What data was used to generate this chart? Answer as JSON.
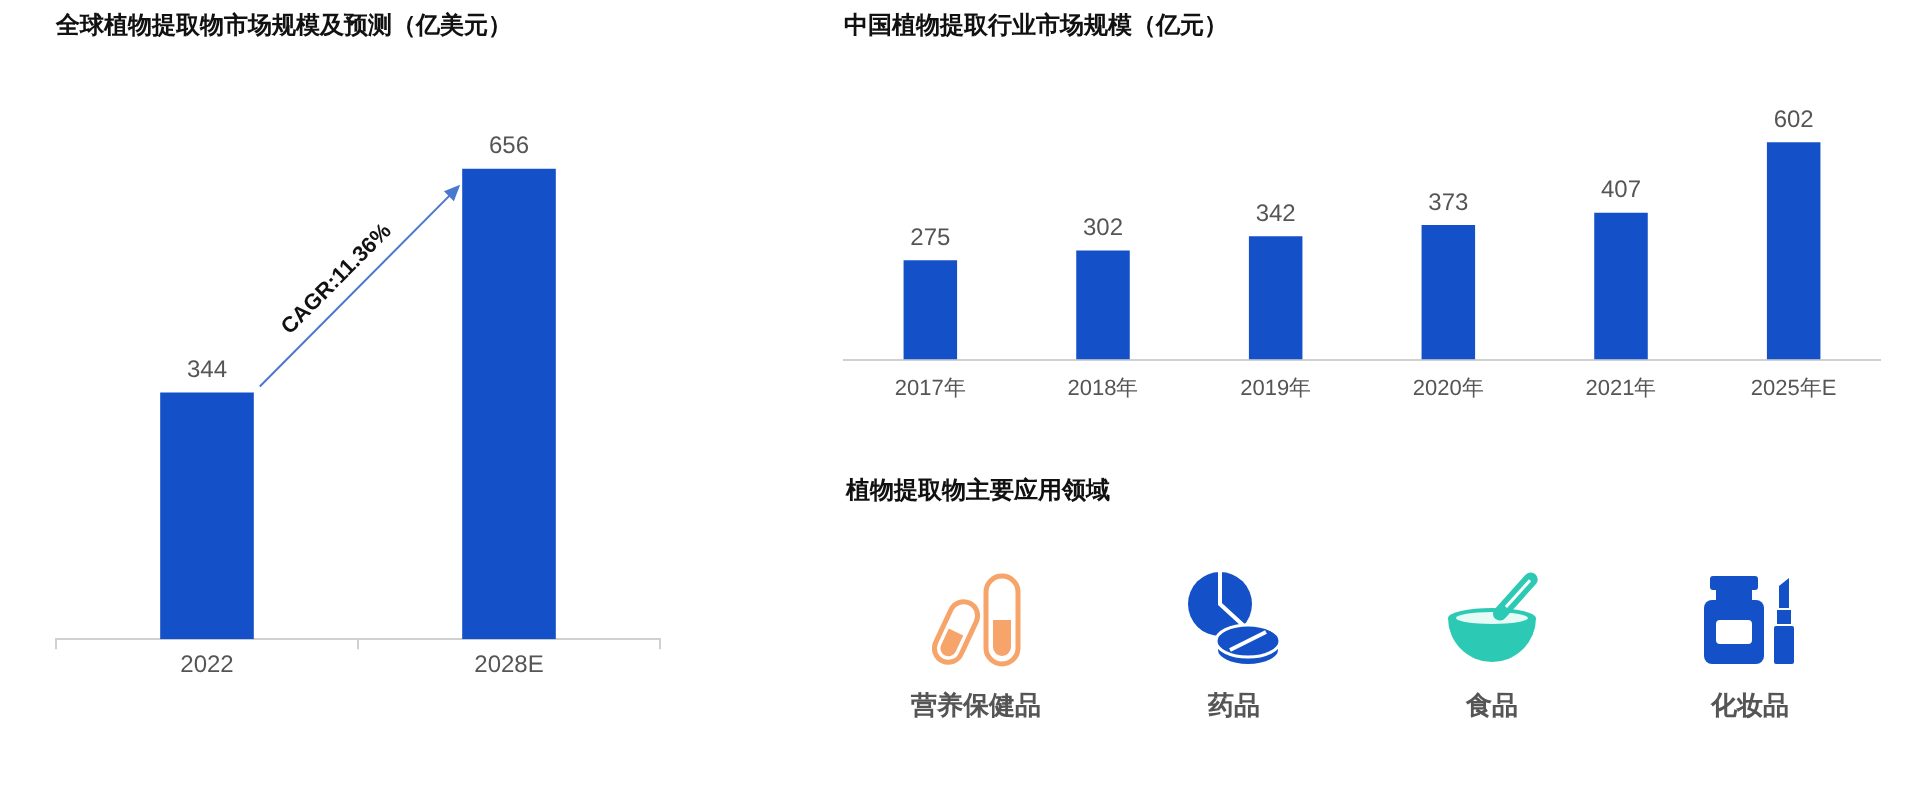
{
  "chart_data": [
    {
      "type": "bar",
      "title": "全球植物提取物市场规模及预测（亿美元）",
      "categories": [
        "2022",
        "2028E"
      ],
      "values": [
        344,
        656
      ],
      "color": "#1450c8",
      "data_labels": true,
      "tick_labels": "x",
      "annotations": [
        "CAGR:11.36%"
      ]
    },
    {
      "type": "bar",
      "title": "中国植物提取行业市场规模（亿元）",
      "categories": [
        "2017年",
        "2018年",
        "2019年",
        "2020年",
        "2021年",
        "2025年E"
      ],
      "values": [
        275,
        302,
        342,
        373,
        407,
        602
      ],
      "color": "#1450c8",
      "data_labels": true,
      "tick_labels": "x"
    },
    {
      "type": "other",
      "title": "植物提取物主要应用领域",
      "annotations": [
        "营养保健品",
        "药品",
        "食品",
        "化妆品"
      ]
    }
  ]
}
